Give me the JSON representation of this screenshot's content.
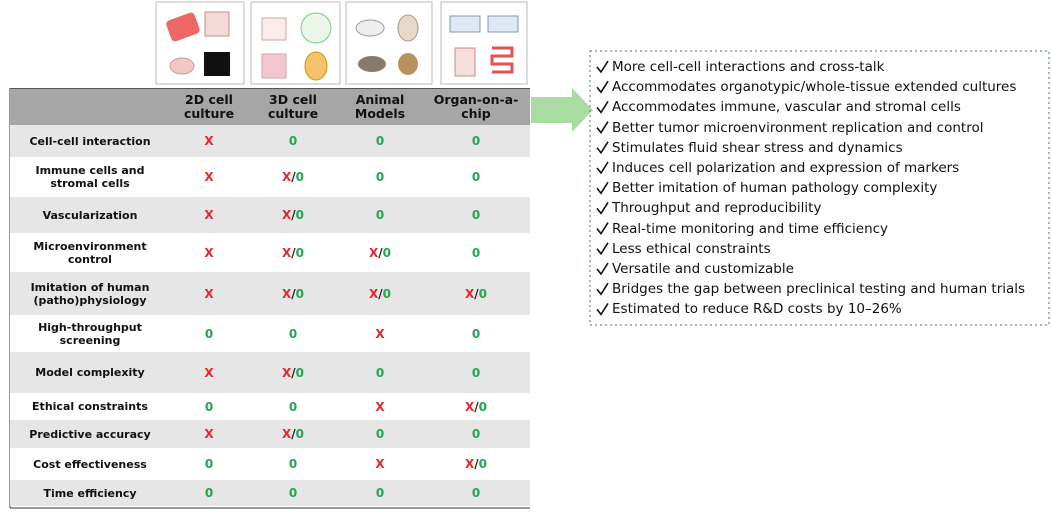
{
  "table": {
    "headers": [
      "",
      "2D cell culture",
      "3D cell culture",
      "Animal Models",
      "Organ-on-a-chip"
    ],
    "rows": [
      {
        "label": "Cell-cell interaction",
        "cells": [
          [
            {
              "text": "X",
              "color": "#e8262a"
            }
          ],
          [
            {
              "text": "0",
              "color": "#1fa84f"
            }
          ],
          [
            {
              "text": "0",
              "color": "#1fa84f"
            }
          ],
          [
            {
              "text": "0",
              "color": "#1fa84f"
            }
          ]
        ]
      },
      {
        "label": "Immune cells and stromal cells",
        "cells": [
          [
            {
              "text": "X",
              "color": "#e8262a"
            }
          ],
          [
            {
              "text": "X",
              "color": "#e8262a"
            },
            {
              "text": "/",
              "color": "#222"
            },
            {
              "text": "0",
              "color": "#1fa84f"
            }
          ],
          [
            {
              "text": "0",
              "color": "#1fa84f"
            }
          ],
          [
            {
              "text": "0",
              "color": "#1fa84f"
            }
          ]
        ]
      },
      {
        "label": "Vascularization",
        "cells": [
          [
            {
              "text": "X",
              "color": "#e8262a"
            }
          ],
          [
            {
              "text": "X",
              "color": "#e8262a"
            },
            {
              "text": "/",
              "color": "#222"
            },
            {
              "text": "0",
              "color": "#1fa84f"
            }
          ],
          [
            {
              "text": "0",
              "color": "#1fa84f"
            }
          ],
          [
            {
              "text": "0",
              "color": "#1fa84f"
            }
          ]
        ]
      },
      {
        "label": "Microenvironment control",
        "cells": [
          [
            {
              "text": "X",
              "color": "#e8262a"
            }
          ],
          [
            {
              "text": "X",
              "color": "#e8262a"
            },
            {
              "text": "/",
              "color": "#222"
            },
            {
              "text": "0",
              "color": "#1fa84f"
            }
          ],
          [
            {
              "text": "X",
              "color": "#e8262a"
            },
            {
              "text": "/",
              "color": "#222"
            },
            {
              "text": "0",
              "color": "#1fa84f"
            }
          ],
          [
            {
              "text": "0",
              "color": "#1fa84f"
            }
          ]
        ]
      },
      {
        "label": "Imitation of human (patho)physiology",
        "cells": [
          [
            {
              "text": "X",
              "color": "#e8262a"
            }
          ],
          [
            {
              "text": "X",
              "color": "#e8262a"
            },
            {
              "text": "/",
              "color": "#222"
            },
            {
              "text": "0",
              "color": "#1fa84f"
            }
          ],
          [
            {
              "text": "X",
              "color": "#e8262a"
            },
            {
              "text": "/",
              "color": "#222"
            },
            {
              "text": "0",
              "color": "#1fa84f"
            }
          ],
          [
            {
              "text": "X",
              "color": "#e8262a"
            },
            {
              "text": "/",
              "color": "#222"
            },
            {
              "text": "0",
              "color": "#1fa84f"
            }
          ]
        ]
      },
      {
        "label": "High-throughput screening",
        "cells": [
          [
            {
              "text": "0",
              "color": "#1fa84f"
            }
          ],
          [
            {
              "text": "0",
              "color": "#1fa84f"
            }
          ],
          [
            {
              "text": "X",
              "color": "#e8262a"
            }
          ],
          [
            {
              "text": "0",
              "color": "#1fa84f"
            }
          ]
        ]
      },
      {
        "label": "Model complexity",
        "cells": [
          [
            {
              "text": "X",
              "color": "#e8262a"
            }
          ],
          [
            {
              "text": "X",
              "color": "#e8262a"
            },
            {
              "text": "/",
              "color": "#222"
            },
            {
              "text": "0",
              "color": "#1fa84f"
            }
          ],
          [
            {
              "text": "0",
              "color": "#1fa84f"
            }
          ],
          [
            {
              "text": "0",
              "color": "#1fa84f"
            }
          ]
        ]
      },
      {
        "label": "Ethical constraints",
        "cells": [
          [
            {
              "text": "0",
              "color": "#1fa84f"
            }
          ],
          [
            {
              "text": "0",
              "color": "#1fa84f"
            }
          ],
          [
            {
              "text": "X",
              "color": "#e8262a"
            }
          ],
          [
            {
              "text": "X",
              "color": "#e8262a"
            },
            {
              "text": "/",
              "color": "#222"
            },
            {
              "text": "0",
              "color": "#1fa84f"
            }
          ]
        ]
      },
      {
        "label": "Predictive accuracy",
        "cells": [
          [
            {
              "text": "X",
              "color": "#e8262a"
            }
          ],
          [
            {
              "text": "X",
              "color": "#e8262a"
            },
            {
              "text": "/",
              "color": "#222"
            },
            {
              "text": "0",
              "color": "#1fa84f"
            }
          ],
          [
            {
              "text": "0",
              "color": "#1fa84f"
            }
          ],
          [
            {
              "text": "0",
              "color": "#1fa84f"
            }
          ]
        ]
      },
      {
        "label": "Cost effectiveness",
        "cells": [
          [
            {
              "text": "0",
              "color": "#1fa84f"
            }
          ],
          [
            {
              "text": "0",
              "color": "#1fa84f"
            }
          ],
          [
            {
              "text": "X",
              "color": "#e8262a"
            }
          ],
          [
            {
              "text": "X",
              "color": "#e8262a"
            },
            {
              "text": "/",
              "color": "#222"
            },
            {
              "text": "0",
              "color": "#1fa84f"
            }
          ]
        ]
      },
      {
        "label": "Time efficiency",
        "cells": [
          [
            {
              "text": "0",
              "color": "#1fa84f"
            }
          ],
          [
            {
              "text": "0",
              "color": "#1fa84f"
            }
          ],
          [
            {
              "text": "0",
              "color": "#1fa84f"
            }
          ],
          [
            {
              "text": "0",
              "color": "#1fa84f"
            }
          ]
        ]
      }
    ]
  },
  "advantages": [
    "More cell-cell interactions and cross-talk",
    "Accommodates organotypic/whole-tissue extended cultures",
    "Accommodates immune, vascular and stromal cells",
    "Better tumor microenvironment replication and control",
    "Stimulates fluid shear stress and dynamics",
    "Induces cell polarization and expression of markers",
    "Better imitation of human pathology complexity",
    "Throughput and reproducibility",
    "Real-time monitoring and time efficiency",
    "Less ethical constraints",
    "Versatile and customizable",
    "Bridges the gap between preclinical testing and human trials",
    "Estimated to reduce R&D costs by 10–26%"
  ]
}
